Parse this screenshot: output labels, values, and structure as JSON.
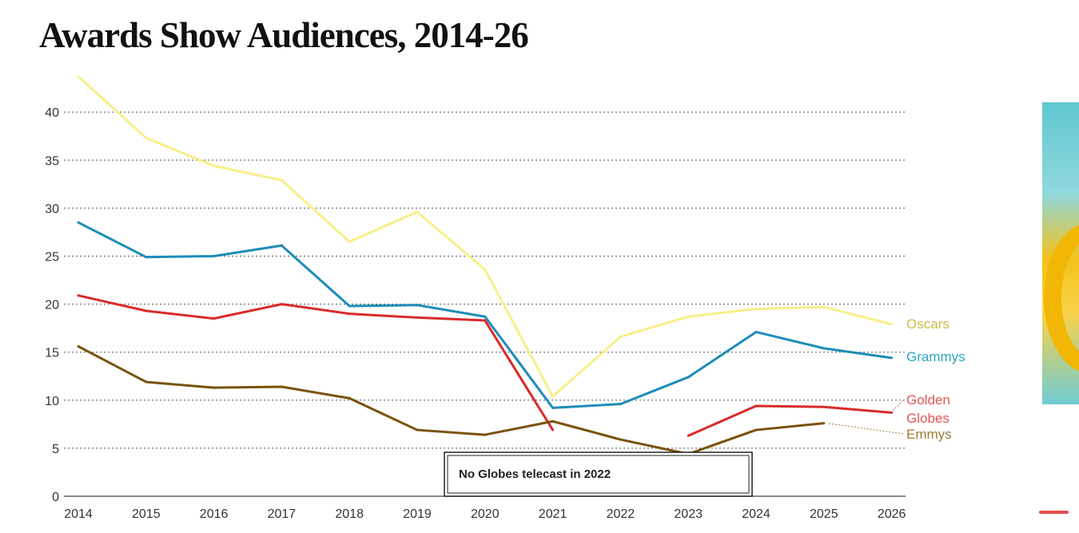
{
  "title": "Awards Show Audiences, 2014-26",
  "chart_data": {
    "type": "line",
    "title": "Awards Show Audiences, 2014-26",
    "xlabel": "",
    "ylabel": "",
    "x": [
      2014,
      2015,
      2016,
      2017,
      2018,
      2019,
      2020,
      2021,
      2022,
      2023,
      2024,
      2025,
      2026
    ],
    "x_tick_labels": [
      "2014",
      "2015",
      "2016",
      "2017",
      "2018",
      "2019",
      "2020",
      "2021",
      "2022",
      "2023",
      "2024",
      "2025",
      "2026"
    ],
    "y_ticks": [
      0,
      5,
      10,
      15,
      20,
      25,
      30,
      35,
      40
    ],
    "y_tick_labels": [
      "0",
      "5",
      "10",
      "15",
      "20",
      "25",
      "30",
      "35",
      "40"
    ],
    "ylim": [
      0,
      45
    ],
    "grid": "horizontal-dotted",
    "series": [
      {
        "name": "Oscars",
        "label_lines": [
          "Oscars"
        ],
        "color": "#f7ef8a",
        "label_color": "#c8bd45",
        "values": [
          43.7,
          37.3,
          34.4,
          32.9,
          26.5,
          29.6,
          23.6,
          10.4,
          16.6,
          18.7,
          19.5,
          19.7,
          17.9
        ]
      },
      {
        "name": "Grammys",
        "label_lines": [
          "Grammys"
        ],
        "color": "#1e8cb8",
        "label_color": "#2aa3c6",
        "values": [
          28.5,
          24.9,
          25.0,
          26.1,
          19.8,
          19.9,
          18.7,
          9.2,
          9.6,
          12.4,
          17.1,
          15.4,
          14.4
        ]
      },
      {
        "name": "Golden Globes",
        "label_lines": [
          "Golden",
          "Globes"
        ],
        "color": "#d92b2b",
        "label_color": "#e45555",
        "values": [
          20.9,
          19.3,
          18.5,
          20.0,
          19.0,
          18.6,
          18.3,
          6.9,
          null,
          6.3,
          9.4,
          9.3,
          8.7
        ]
      },
      {
        "name": "Emmys",
        "label_lines": [
          "Emmys"
        ],
        "color": "#7a5209",
        "label_color": "#a07a3a",
        "values": [
          15.6,
          11.9,
          11.3,
          11.4,
          10.2,
          6.9,
          6.4,
          7.8,
          5.9,
          4.4,
          6.9,
          7.6,
          null
        ]
      }
    ],
    "annotations": [
      {
        "text": "No Globes telecast in 2022"
      }
    ]
  }
}
